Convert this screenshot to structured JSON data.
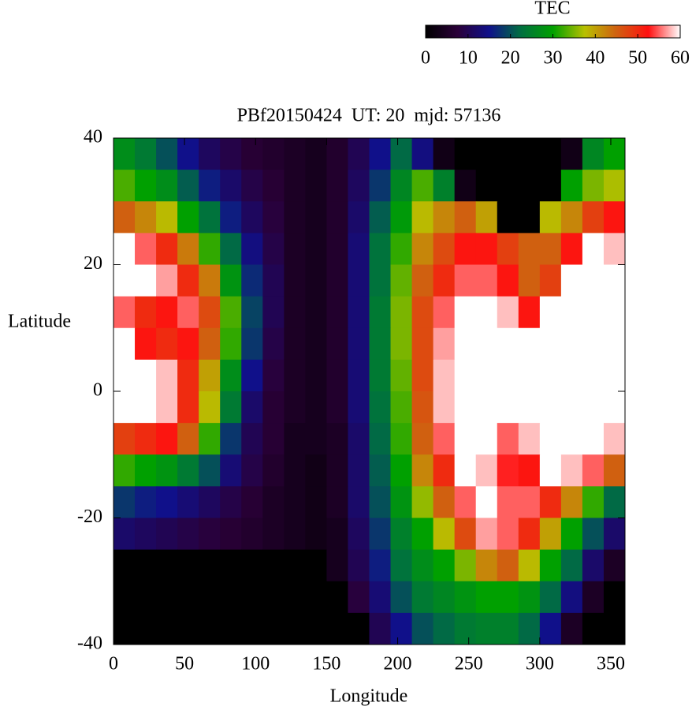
{
  "chart_data": {
    "type": "heatmap",
    "title": "PBf20150424  UT: 20  mjd: 57136",
    "x_label": "Longitude",
    "y_label": "Latitude",
    "colorbar_label": "TEC",
    "xlim": [
      0,
      360
    ],
    "xticks": [
      0,
      50,
      100,
      150,
      200,
      250,
      300,
      350
    ],
    "ylim": [
      -40,
      40
    ],
    "yticks": [
      -40,
      -20,
      0,
      20,
      40
    ],
    "clim": [
      0,
      60
    ],
    "cbticks": [
      0,
      10,
      20,
      30,
      40,
      50,
      60
    ],
    "colormap": [
      "#000000",
      "#2a0038",
      "#10108a",
      "#007040",
      "#00a000",
      "#b8c000",
      "#d06010",
      "#ff1010",
      "#ffffff"
    ],
    "x": [
      7.5,
      22.5,
      37.5,
      52.5,
      67.5,
      82.5,
      97.5,
      112.5,
      127.5,
      142.5,
      157.5,
      172.5,
      187.5,
      202.5,
      217.5,
      232.5,
      247.5,
      262.5,
      277.5,
      292.5,
      307.5,
      322.5,
      337.5,
      352.5
    ],
    "y": [
      37.5,
      32.5,
      27.5,
      22.5,
      17.5,
      12.5,
      7.5,
      2.5,
      -2.5,
      -7.5,
      -12.5,
      -17.5,
      -22.5,
      -27.5,
      -32.5,
      -37.5
    ],
    "z": [
      [
        27,
        24,
        20,
        15,
        11,
        9,
        7,
        6,
        5,
        4,
        6,
        10,
        15,
        22,
        14,
        3,
        0,
        0,
        0,
        0,
        0,
        3,
        26,
        30
      ],
      [
        33,
        30,
        27,
        21,
        16,
        12,
        9,
        7,
        5,
        4,
        6,
        11,
        18,
        26,
        33,
        25,
        3,
        0,
        0,
        0,
        0,
        30,
        35,
        37
      ],
      [
        45,
        42,
        38,
        30,
        23,
        16,
        11,
        8,
        5,
        4,
        6,
        12,
        21,
        29,
        38,
        42,
        45,
        40,
        0,
        0,
        38,
        42,
        48,
        52
      ],
      [
        60,
        55,
        50,
        43,
        32,
        22,
        14,
        9,
        5,
        4,
        6,
        13,
        23,
        32,
        42,
        47,
        52,
        52,
        48,
        45,
        45,
        52,
        60,
        58
      ],
      [
        60,
        60,
        57,
        50,
        43,
        28,
        17,
        10,
        5,
        4,
        6,
        13,
        23,
        34,
        45,
        50,
        55,
        55,
        52,
        45,
        48,
        60,
        60,
        60
      ],
      [
        55,
        50,
        52,
        55,
        47,
        33,
        19,
        10,
        5,
        4,
        6,
        13,
        24,
        35,
        47,
        55,
        60,
        60,
        58,
        52,
        60,
        60,
        60,
        60
      ],
      [
        60,
        52,
        50,
        52,
        45,
        32,
        18,
        9,
        5,
        4,
        6,
        13,
        24,
        35,
        47,
        57,
        60,
        60,
        60,
        60,
        60,
        60,
        60,
        60
      ],
      [
        60,
        60,
        58,
        50,
        40,
        27,
        15,
        8,
        5,
        4,
        6,
        13,
        24,
        34,
        47,
        58,
        60,
        60,
        60,
        60,
        60,
        60,
        60,
        60
      ],
      [
        60,
        60,
        58,
        50,
        38,
        24,
        12,
        7,
        5,
        4,
        6,
        13,
        23,
        33,
        46,
        58,
        60,
        60,
        60,
        60,
        60,
        60,
        60,
        60
      ],
      [
        48,
        50,
        52,
        45,
        32,
        18,
        10,
        7,
        4,
        4,
        5,
        12,
        22,
        32,
        45,
        55,
        60,
        60,
        55,
        58,
        60,
        60,
        60,
        58
      ],
      [
        32,
        30,
        28,
        24,
        20,
        13,
        9,
        6,
        4,
        3,
        5,
        12,
        21,
        30,
        42,
        50,
        60,
        58,
        53,
        52,
        60,
        58,
        55,
        45
      ],
      [
        18,
        16,
        15,
        13,
        11,
        9,
        7,
        5,
        4,
        3,
        5,
        12,
        20,
        28,
        36,
        45,
        55,
        60,
        55,
        55,
        50,
        42,
        32,
        22
      ],
      [
        12,
        11,
        10,
        9,
        8,
        7,
        6,
        5,
        4,
        3,
        4,
        11,
        18,
        25,
        30,
        38,
        47,
        57,
        55,
        50,
        40,
        30,
        20,
        12
      ],
      [
        0,
        0,
        0,
        0,
        0,
        0,
        0,
        0,
        0,
        0,
        4,
        10,
        16,
        23,
        27,
        30,
        35,
        42,
        45,
        38,
        30,
        22,
        12,
        5
      ],
      [
        0,
        0,
        0,
        0,
        0,
        0,
        0,
        0,
        0,
        0,
        0,
        8,
        13,
        20,
        24,
        26,
        28,
        30,
        30,
        28,
        22,
        14,
        5,
        0
      ],
      [
        0,
        0,
        0,
        0,
        0,
        0,
        0,
        0,
        0,
        0,
        0,
        0,
        10,
        15,
        20,
        22,
        24,
        25,
        25,
        22,
        15,
        5,
        0,
        0
      ]
    ]
  }
}
